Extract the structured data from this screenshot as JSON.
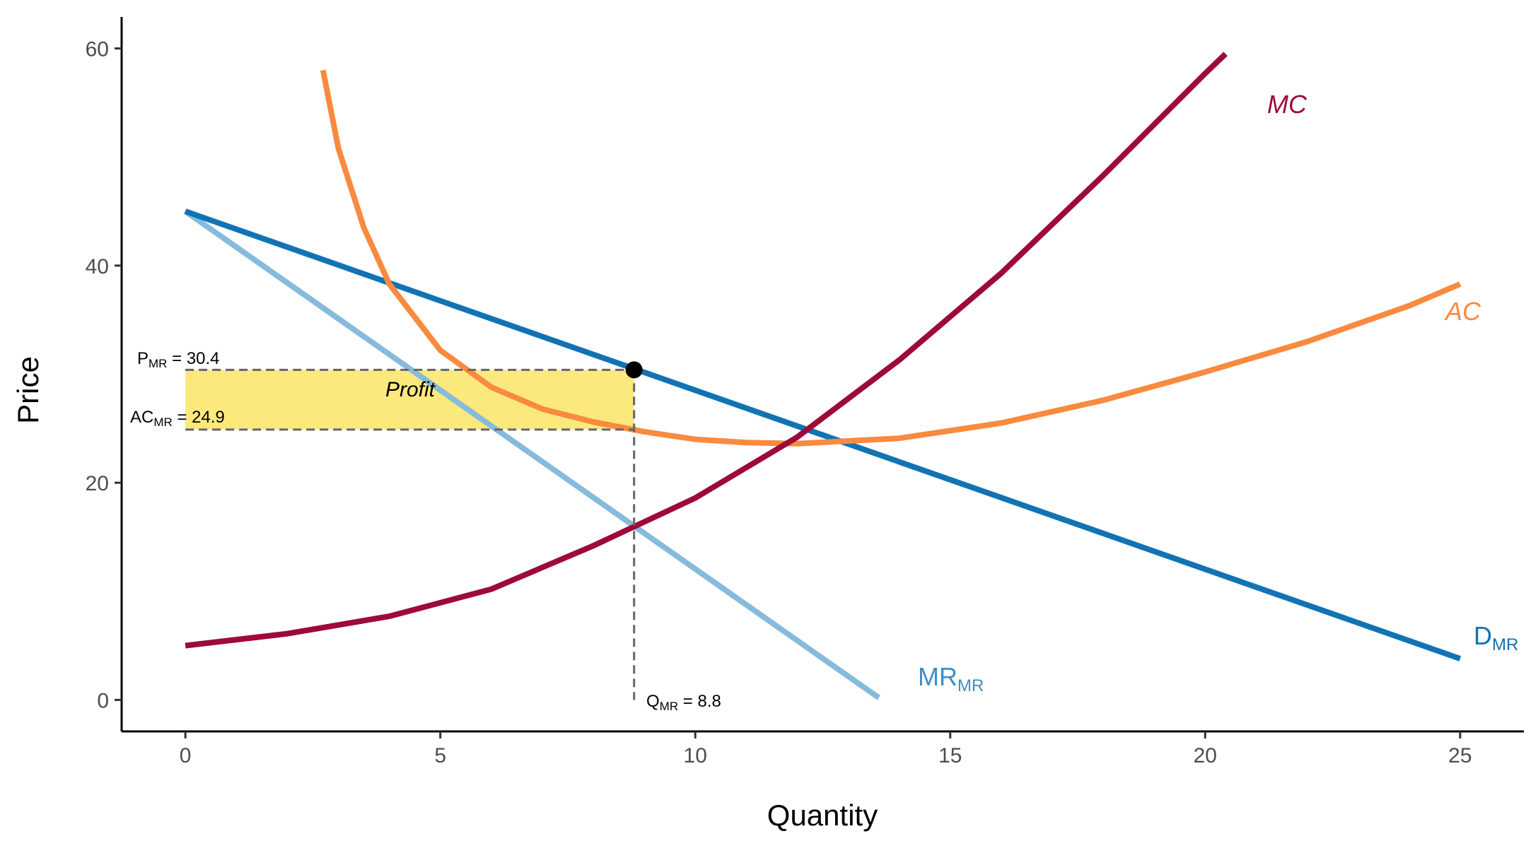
{
  "chart_data": {
    "type": "line",
    "xlabel": "Quantity",
    "ylabel": "Price",
    "xlim": [
      -1.25,
      26.25
    ],
    "ylim": [
      -2.9,
      62.9
    ],
    "xticks": [
      0,
      5,
      10,
      15,
      20,
      25
    ],
    "yticks": [
      0,
      20,
      40,
      60
    ],
    "grid": false,
    "legend": "none",
    "colors": {
      "mc": "#9d0a3a",
      "ac": "#f98a3f",
      "demand": "#1273b4",
      "mr": "#86bbdc",
      "profit_fill": "#fbe97e",
      "guide": "#666666",
      "point": "#000000"
    },
    "series": [
      {
        "name": "MC",
        "x": [
          0,
          2,
          4,
          6,
          8,
          10,
          12,
          14,
          16,
          18,
          20,
          20.4
        ],
        "y": [
          5.0,
          6.1,
          7.7,
          10.2,
          14.2,
          18.6,
          24.2,
          31.3,
          39.3,
          48.3,
          57.7,
          59.5
        ]
      },
      {
        "name": "AC",
        "x": [
          2.7,
          3,
          3.5,
          4,
          5,
          6,
          7,
          8,
          9,
          10,
          11,
          12,
          14,
          16,
          18,
          20,
          22,
          24,
          25
        ],
        "y": [
          58.0,
          50.8,
          43.5,
          38.3,
          32.2,
          28.8,
          26.8,
          25.6,
          24.7,
          24.0,
          23.7,
          23.6,
          24.1,
          25.5,
          27.6,
          30.2,
          33.0,
          36.3,
          38.3
        ]
      },
      {
        "name": "D",
        "x": [
          0,
          25
        ],
        "y": [
          45.0,
          3.8
        ]
      },
      {
        "name": "MR",
        "x": [
          0,
          13.6
        ],
        "y": [
          45.0,
          0.2
        ]
      }
    ],
    "labels": {
      "mc": {
        "text": "MC"
      },
      "ac": {
        "text": "AC"
      },
      "demand": {
        "main": "D",
        "sub": "MR"
      },
      "mr": {
        "main": "MR",
        "sub": "MR"
      },
      "profit": "Profit"
    },
    "optimum": {
      "q": 8.8,
      "p": 30.4,
      "ac": 24.9,
      "q_label": {
        "main": "Q",
        "sub": "MR",
        "rest": " = 8.8"
      },
      "p_label": {
        "main": "P",
        "sub": "MR",
        "rest": " = 30.4"
      },
      "ac_label": {
        "main": "AC",
        "sub": "MR",
        "rest": " = 24.9"
      }
    }
  }
}
